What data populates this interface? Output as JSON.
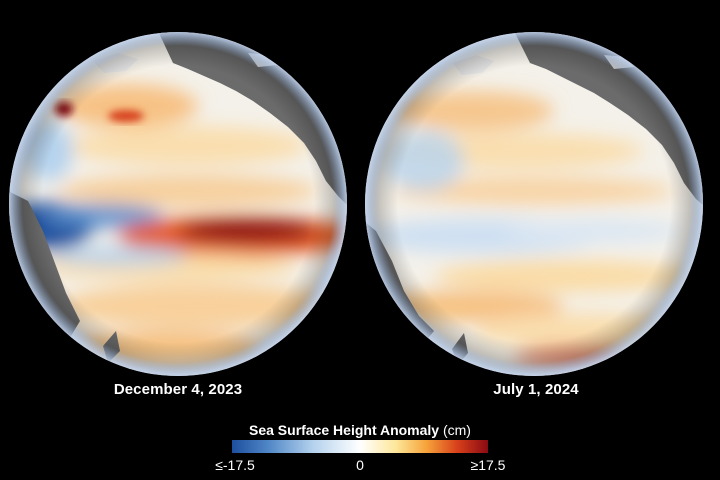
{
  "panels": [
    {
      "date": "December 4, 2023"
    },
    {
      "date": "July 1, 2024"
    }
  ],
  "legend": {
    "title": "Sea Surface Height Anomaly",
    "unit": "(cm)",
    "min_label": "≤-17.5",
    "mid_label": "0",
    "max_label": "≥17.5",
    "min_value": -17.5,
    "max_value": 17.5,
    "colors": [
      "#1d4f9e",
      "#4f86c6",
      "#b6d3ee",
      "#ffffff",
      "#fde79a",
      "#f6a33a",
      "#d7401a",
      "#8a0a13"
    ]
  },
  "colors": {
    "background": "#000000",
    "land": "#6b6b6b",
    "ocean_neutral": "#f4f1ea"
  }
}
